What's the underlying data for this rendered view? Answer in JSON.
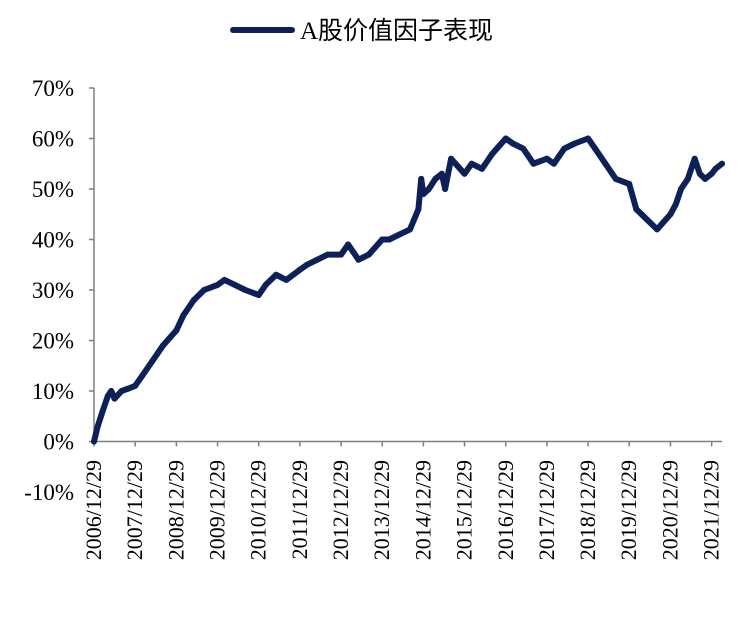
{
  "chart_data": {
    "type": "line",
    "title": "",
    "xlabel": "",
    "ylabel": "",
    "legend": {
      "position": "top-center"
    },
    "grid": false,
    "ylim": [
      -0.1,
      0.7
    ],
    "y_ticks": [
      -0.1,
      0.0,
      0.1,
      0.2,
      0.3,
      0.4,
      0.5,
      0.6,
      0.7
    ],
    "y_tick_labels": [
      "-10%",
      "0%",
      "10%",
      "20%",
      "30%",
      "40%",
      "50%",
      "60%",
      "70%"
    ],
    "x_tick_labels": [
      "2006/12/29",
      "2007/12/29",
      "2008/12/29",
      "2009/12/29",
      "2010/12/29",
      "2011/12/29",
      "2012/12/29",
      "2013/12/29",
      "2014/12/29",
      "2015/12/29",
      "2016/12/29",
      "2017/12/29",
      "2018/12/29",
      "2019/12/29",
      "2020/12/29",
      "2021/12/29"
    ],
    "xlim": [
      "2006/12/29",
      "2022/03/31"
    ],
    "series": [
      {
        "name": "A股价值因子表现",
        "color": "#0d2158",
        "x": [
          "2006/12/29",
          "2007/01/31",
          "2007/03/15",
          "2007/04/30",
          "2007/05/31",
          "2007/06/30",
          "2007/08/31",
          "2007/10/31",
          "2007/12/29",
          "2008/03/01",
          "2008/06/01",
          "2008/09/01",
          "2008/12/29",
          "2009/03/01",
          "2009/06/01",
          "2009/09/01",
          "2009/12/29",
          "2010/03/01",
          "2010/06/01",
          "2010/09/01",
          "2010/12/29",
          "2011/03/01",
          "2011/06/01",
          "2011/09/01",
          "2011/12/29",
          "2012/03/01",
          "2012/06/01",
          "2012/09/01",
          "2012/12/29",
          "2013/03/01",
          "2013/06/01",
          "2013/09/01",
          "2013/12/29",
          "2014/03/01",
          "2014/06/01",
          "2014/09/01",
          "2014/11/15",
          "2014/12/10",
          "2014/12/29",
          "2015/02/15",
          "2015/04/15",
          "2015/06/10",
          "2015/07/10",
          "2015/09/01",
          "2015/12/29",
          "2016/03/01",
          "2016/06/01",
          "2016/09/01",
          "2016/12/29",
          "2017/03/01",
          "2017/06/01",
          "2017/09/01",
          "2017/12/29",
          "2018/03/01",
          "2018/06/01",
          "2018/09/01",
          "2018/12/29",
          "2019/03/01",
          "2019/06/01",
          "2019/09/01",
          "2019/12/29",
          "2020/03/01",
          "2020/06/01",
          "2020/09/01",
          "2020/12/29",
          "2021/02/15",
          "2021/04/01",
          "2021/06/01",
          "2021/08/01",
          "2021/09/15",
          "2021/11/01",
          "2021/12/29",
          "2022/02/01",
          "2022/03/31"
        ],
        "values": [
          0.0,
          0.03,
          0.06,
          0.09,
          0.1,
          0.085,
          0.1,
          0.105,
          0.11,
          0.13,
          0.16,
          0.19,
          0.22,
          0.25,
          0.28,
          0.3,
          0.31,
          0.32,
          0.31,
          0.3,
          0.29,
          0.31,
          0.33,
          0.32,
          0.34,
          0.35,
          0.36,
          0.37,
          0.37,
          0.39,
          0.36,
          0.37,
          0.4,
          0.4,
          0.41,
          0.42,
          0.46,
          0.52,
          0.49,
          0.5,
          0.52,
          0.53,
          0.5,
          0.56,
          0.53,
          0.55,
          0.54,
          0.57,
          0.6,
          0.59,
          0.58,
          0.55,
          0.56,
          0.55,
          0.58,
          0.59,
          0.6,
          0.58,
          0.55,
          0.52,
          0.51,
          0.46,
          0.44,
          0.42,
          0.45,
          0.47,
          0.5,
          0.52,
          0.56,
          0.53,
          0.52,
          0.53,
          0.54,
          0.55
        ]
      }
    ]
  }
}
